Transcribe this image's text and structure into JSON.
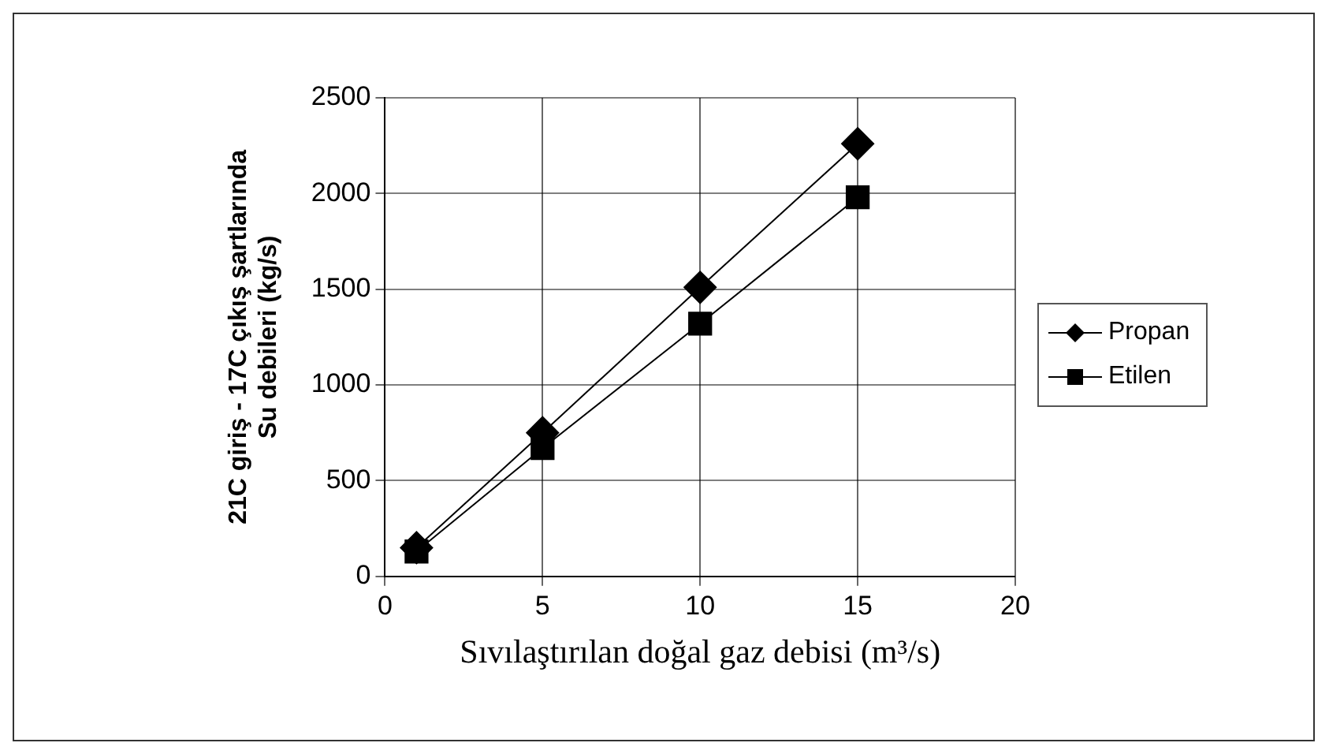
{
  "chart_data": {
    "type": "line",
    "xlabel": "Sıvılaştırılan doğal gaz debisi (m³/s)",
    "ylabel": "21C giriş - 17C çıkış şartlarında\nSu debileri (kg/s)",
    "x": [
      1,
      5,
      10,
      15
    ],
    "series": [
      {
        "name": "Propan",
        "color": "#000000",
        "marker": "diamond",
        "values": [
          150,
          750,
          1510,
          2260
        ]
      },
      {
        "name": "Etilen",
        "color": "#000000",
        "marker": "square",
        "values": [
          130,
          670,
          1320,
          1980
        ]
      }
    ],
    "xlim": [
      0,
      20
    ],
    "xticks": [
      0,
      5,
      10,
      15,
      20
    ],
    "ylim": [
      0,
      2500
    ],
    "yticks": [
      0,
      500,
      1000,
      1500,
      2000,
      2500
    ],
    "grid": true,
    "legend": "right",
    "line_style": "solid"
  }
}
